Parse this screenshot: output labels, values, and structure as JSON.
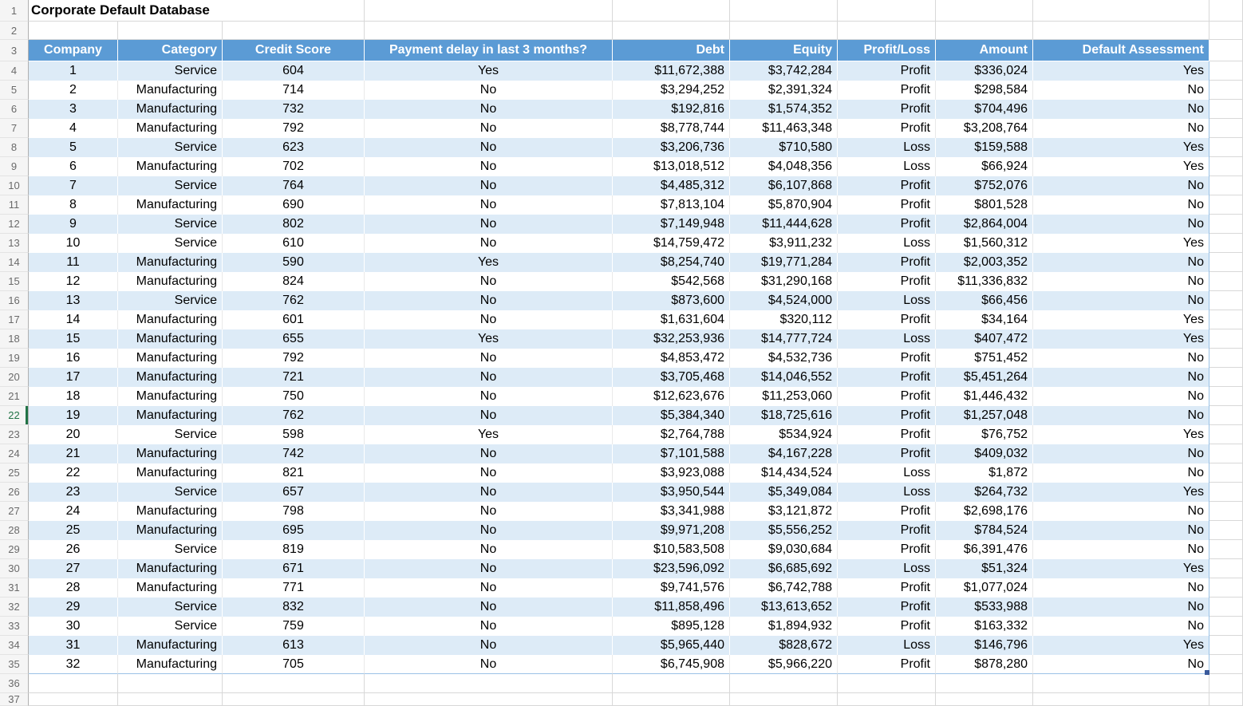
{
  "title": "Corporate Default Database",
  "selected_row": "22",
  "row_numbers": [
    "1",
    "2",
    "3",
    "4",
    "5",
    "6",
    "7",
    "8",
    "9",
    "10",
    "11",
    "12",
    "13",
    "14",
    "15",
    "16",
    "17",
    "18",
    "19",
    "20",
    "21",
    "22",
    "23",
    "24",
    "25",
    "26",
    "27",
    "28",
    "29",
    "30",
    "31",
    "32",
    "33",
    "34",
    "35",
    "36",
    "37"
  ],
  "colors": {
    "header_bg": "#5b9bd5",
    "band_bg": "#ddebf7",
    "table_border": "#9bc2e6",
    "active_row_green": "#217346",
    "resize_handle": "#3a5a9b"
  },
  "table": {
    "columns": [
      "Company",
      "Category",
      "Credit Score",
      "Payment delay in last 3 months?",
      "Debt",
      "Equity",
      "Profit/Loss",
      "Amount",
      "Default Assessment"
    ],
    "rows": [
      [
        "1",
        "Service",
        "604",
        "Yes",
        "$11,672,388",
        "$3,742,284",
        "Profit",
        "$336,024",
        "Yes"
      ],
      [
        "2",
        "Manufacturing",
        "714",
        "No",
        "$3,294,252",
        "$2,391,324",
        "Profit",
        "$298,584",
        "No"
      ],
      [
        "3",
        "Manufacturing",
        "732",
        "No",
        "$192,816",
        "$1,574,352",
        "Profit",
        "$704,496",
        "No"
      ],
      [
        "4",
        "Manufacturing",
        "792",
        "No",
        "$8,778,744",
        "$11,463,348",
        "Profit",
        "$3,208,764",
        "No"
      ],
      [
        "5",
        "Service",
        "623",
        "No",
        "$3,206,736",
        "$710,580",
        "Loss",
        "$159,588",
        "Yes"
      ],
      [
        "6",
        "Manufacturing",
        "702",
        "No",
        "$13,018,512",
        "$4,048,356",
        "Loss",
        "$66,924",
        "Yes"
      ],
      [
        "7",
        "Service",
        "764",
        "No",
        "$4,485,312",
        "$6,107,868",
        "Profit",
        "$752,076",
        "No"
      ],
      [
        "8",
        "Manufacturing",
        "690",
        "No",
        "$7,813,104",
        "$5,870,904",
        "Profit",
        "$801,528",
        "No"
      ],
      [
        "9",
        "Service",
        "802",
        "No",
        "$7,149,948",
        "$11,444,628",
        "Profit",
        "$2,864,004",
        "No"
      ],
      [
        "10",
        "Service",
        "610",
        "No",
        "$14,759,472",
        "$3,911,232",
        "Loss",
        "$1,560,312",
        "Yes"
      ],
      [
        "11",
        "Manufacturing",
        "590",
        "Yes",
        "$8,254,740",
        "$19,771,284",
        "Profit",
        "$2,003,352",
        "No"
      ],
      [
        "12",
        "Manufacturing",
        "824",
        "No",
        "$542,568",
        "$31,290,168",
        "Profit",
        "$11,336,832",
        "No"
      ],
      [
        "13",
        "Service",
        "762",
        "No",
        "$873,600",
        "$4,524,000",
        "Loss",
        "$66,456",
        "No"
      ],
      [
        "14",
        "Manufacturing",
        "601",
        "No",
        "$1,631,604",
        "$320,112",
        "Profit",
        "$34,164",
        "Yes"
      ],
      [
        "15",
        "Manufacturing",
        "655",
        "Yes",
        "$32,253,936",
        "$14,777,724",
        "Loss",
        "$407,472",
        "Yes"
      ],
      [
        "16",
        "Manufacturing",
        "792",
        "No",
        "$4,853,472",
        "$4,532,736",
        "Profit",
        "$751,452",
        "No"
      ],
      [
        "17",
        "Manufacturing",
        "721",
        "No",
        "$3,705,468",
        "$14,046,552",
        "Profit",
        "$5,451,264",
        "No"
      ],
      [
        "18",
        "Manufacturing",
        "750",
        "No",
        "$12,623,676",
        "$11,253,060",
        "Profit",
        "$1,446,432",
        "No"
      ],
      [
        "19",
        "Manufacturing",
        "762",
        "No",
        "$5,384,340",
        "$18,725,616",
        "Profit",
        "$1,257,048",
        "No"
      ],
      [
        "20",
        "Service",
        "598",
        "Yes",
        "$2,764,788",
        "$534,924",
        "Profit",
        "$76,752",
        "Yes"
      ],
      [
        "21",
        "Manufacturing",
        "742",
        "No",
        "$7,101,588",
        "$4,167,228",
        "Profit",
        "$409,032",
        "No"
      ],
      [
        "22",
        "Manufacturing",
        "821",
        "No",
        "$3,923,088",
        "$14,434,524",
        "Loss",
        "$1,872",
        "No"
      ],
      [
        "23",
        "Service",
        "657",
        "No",
        "$3,950,544",
        "$5,349,084",
        "Loss",
        "$264,732",
        "Yes"
      ],
      [
        "24",
        "Manufacturing",
        "798",
        "No",
        "$3,341,988",
        "$3,121,872",
        "Profit",
        "$2,698,176",
        "No"
      ],
      [
        "25",
        "Manufacturing",
        "695",
        "No",
        "$9,971,208",
        "$5,556,252",
        "Profit",
        "$784,524",
        "No"
      ],
      [
        "26",
        "Service",
        "819",
        "No",
        "$10,583,508",
        "$9,030,684",
        "Profit",
        "$6,391,476",
        "No"
      ],
      [
        "27",
        "Manufacturing",
        "671",
        "No",
        "$23,596,092",
        "$6,685,692",
        "Loss",
        "$51,324",
        "Yes"
      ],
      [
        "28",
        "Manufacturing",
        "771",
        "No",
        "$9,741,576",
        "$6,742,788",
        "Profit",
        "$1,077,024",
        "No"
      ],
      [
        "29",
        "Service",
        "832",
        "No",
        "$11,858,496",
        "$13,613,652",
        "Profit",
        "$533,988",
        "No"
      ],
      [
        "30",
        "Service",
        "759",
        "No",
        "$895,128",
        "$1,894,932",
        "Profit",
        "$163,332",
        "No"
      ],
      [
        "31",
        "Manufacturing",
        "613",
        "No",
        "$5,965,440",
        "$828,672",
        "Loss",
        "$146,796",
        "Yes"
      ],
      [
        "32",
        "Manufacturing",
        "705",
        "No",
        "$6,745,908",
        "$5,966,220",
        "Profit",
        "$878,280",
        "No"
      ]
    ]
  }
}
